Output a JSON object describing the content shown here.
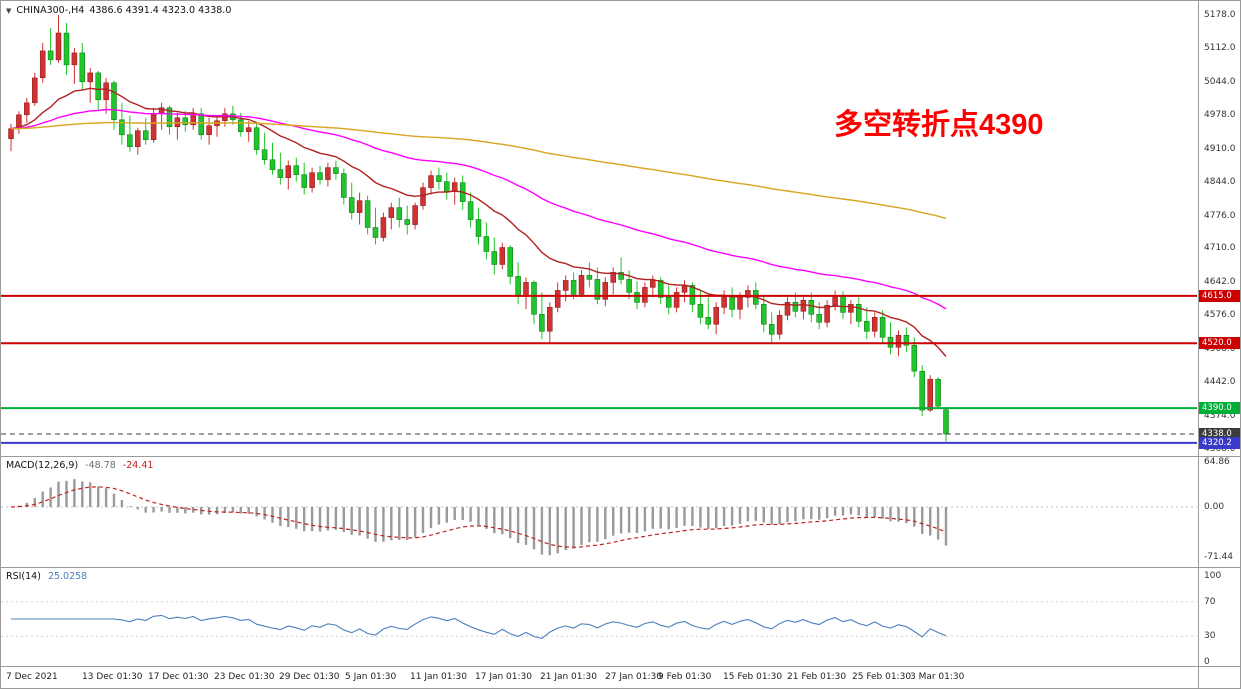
{
  "header": {
    "marker": "▼",
    "symbol": "CHINA300-,H4",
    "ohlc": "4386.6 4391.4 4323.0 4338.0"
  },
  "annotation": {
    "text": "多空转折点4390",
    "color": "#FF0000"
  },
  "price_axis": {
    "ticks": [
      "5178.0",
      "5112.0",
      "5044.0",
      "4978.0",
      "4910.0",
      "4844.0",
      "4776.0",
      "4710.0",
      "4642.0",
      "4576.0",
      "4508.0",
      "4442.0",
      "4374.0",
      "4308.0"
    ]
  },
  "levels": [
    {
      "price": 4615.0,
      "label": "4615.0",
      "color": "#CC0000",
      "width": 2
    },
    {
      "price": 4520.0,
      "label": "4520.0",
      "color": "#CC0000",
      "width": 2
    },
    {
      "price": 4390.0,
      "label": "4390.0",
      "color": "#00AE3A",
      "width": 2
    },
    {
      "price": 4338.0,
      "label": "4338.0",
      "color": "#3C3C3C",
      "width": 1,
      "dash": true
    },
    {
      "price": 4320.2,
      "label": "4320.2",
      "color": "#3A3AC8",
      "width": 2
    }
  ],
  "macd_panel": {
    "label": "MACD(12,26,9)",
    "value1": "-48.78",
    "value2": "-24.41",
    "axis_ticks": [
      "64.86",
      "0.00",
      "-71.44"
    ]
  },
  "rsi_panel": {
    "label": "RSI(14)",
    "value": "25.0258",
    "axis_ticks": [
      "100",
      "70",
      "30",
      "0"
    ]
  },
  "time_axis": {
    "labels": [
      "7 Dec 2021",
      "13 Dec 01:30",
      "17 Dec 01:30",
      "23 Dec 01:30",
      "29 Dec 01:30",
      "5 Jan 01:30",
      "11 Jan 01:30",
      "17 Jan 01:30",
      "21 Jan 01:30",
      "27 Jan 01:30",
      "9 Feb 01:30",
      "15 Feb 01:30",
      "21 Feb 01:30",
      "25 Feb 01:30",
      "3 Mar 01:30"
    ],
    "positions": [
      0.004,
      0.068,
      0.123,
      0.178,
      0.232,
      0.287,
      0.342,
      0.396,
      0.45,
      0.505,
      0.549,
      0.603,
      0.657,
      0.711,
      0.759
    ]
  },
  "chart_data": [
    {
      "type": "candlestick",
      "title": "CHINA300-,H4",
      "ylim": [
        4308,
        5178
      ],
      "y_ticks": [
        5178,
        5112,
        5044,
        4978,
        4910,
        4844,
        4776,
        4710,
        4642,
        4576,
        4508,
        4442,
        4374,
        4308
      ],
      "colors": {
        "bull": "#D03232",
        "bear": "#1FC52B"
      },
      "moving_averages": [
        {
          "period": 18,
          "color": "#B22222"
        },
        {
          "period": 55,
          "color": "#FF00FF"
        },
        {
          "period": 200,
          "color": "#DAA520"
        }
      ],
      "hlines": [
        4615.0,
        4520.0,
        4390.0,
        4338.0,
        4320.2
      ],
      "last_candle_ohlc": [
        4386.6,
        4391.4,
        4323.0,
        4338.0
      ],
      "candles": [
        [
          4930,
          4960,
          4905,
          4950
        ],
        [
          4950,
          4985,
          4940,
          4978
        ],
        [
          4978,
          5012,
          4962,
          5002
        ],
        [
          5002,
          5062,
          4996,
          5052
        ],
        [
          5052,
          5122,
          5042,
          5106
        ],
        [
          5106,
          5152,
          5078,
          5088
        ],
        [
          5088,
          5178,
          5082,
          5142
        ],
        [
          5142,
          5162,
          5058,
          5078
        ],
        [
          5078,
          5112,
          5040,
          5102
        ],
        [
          5102,
          5122,
          5028,
          5044
        ],
        [
          5044,
          5072,
          5002,
          5062
        ],
        [
          5062,
          5066,
          4988,
          5008
        ],
        [
          5008,
          5052,
          4980,
          5042
        ],
        [
          5042,
          5046,
          4948,
          4968
        ],
        [
          4968,
          5002,
          4918,
          4938
        ],
        [
          4938,
          4976,
          4904,
          4914
        ],
        [
          4914,
          4952,
          4898,
          4946
        ],
        [
          4946,
          4972,
          4918,
          4928
        ],
        [
          4928,
          4992,
          4922,
          4980
        ],
        [
          4980,
          5002,
          4948,
          4992
        ],
        [
          4992,
          4996,
          4938,
          4954
        ],
        [
          4954,
          4982,
          4928,
          4972
        ],
        [
          4972,
          4986,
          4944,
          4958
        ],
        [
          4958,
          4992,
          4948,
          4980
        ],
        [
          4980,
          4992,
          4928,
          4938
        ],
        [
          4938,
          4972,
          4918,
          4956
        ],
        [
          4956,
          4976,
          4934,
          4966
        ],
        [
          4966,
          4992,
          4954,
          4980
        ],
        [
          4980,
          4996,
          4958,
          4968
        ],
        [
          4968,
          4982,
          4934,
          4944
        ],
        [
          4944,
          4966,
          4924,
          4952
        ],
        [
          4952,
          4962,
          4898,
          4908
        ],
        [
          4908,
          4942,
          4878,
          4888
        ],
        [
          4888,
          4922,
          4858,
          4868
        ],
        [
          4868,
          4902,
          4838,
          4852
        ],
        [
          4852,
          4886,
          4828,
          4876
        ],
        [
          4876,
          4892,
          4844,
          4858
        ],
        [
          4858,
          4882,
          4818,
          4832
        ],
        [
          4832,
          4872,
          4822,
          4862
        ],
        [
          4862,
          4876,
          4838,
          4848
        ],
        [
          4848,
          4882,
          4834,
          4872
        ],
        [
          4872,
          4886,
          4848,
          4860
        ],
        [
          4860,
          4870,
          4798,
          4812
        ],
        [
          4812,
          4842,
          4768,
          4782
        ],
        [
          4782,
          4822,
          4758,
          4806
        ],
        [
          4806,
          4816,
          4738,
          4752
        ],
        [
          4752,
          4792,
          4718,
          4732
        ],
        [
          4732,
          4782,
          4724,
          4772
        ],
        [
          4772,
          4802,
          4748,
          4792
        ],
        [
          4792,
          4812,
          4752,
          4768
        ],
        [
          4768,
          4796,
          4738,
          4758
        ],
        [
          4758,
          4802,
          4748,
          4796
        ],
        [
          4796,
          4842,
          4788,
          4832
        ],
        [
          4832,
          4866,
          4818,
          4856
        ],
        [
          4856,
          4872,
          4828,
          4844
        ],
        [
          4844,
          4862,
          4808,
          4824
        ],
        [
          4824,
          4852,
          4798,
          4842
        ],
        [
          4842,
          4856,
          4788,
          4804
        ],
        [
          4804,
          4822,
          4752,
          4768
        ],
        [
          4768,
          4792,
          4718,
          4734
        ],
        [
          4734,
          4762,
          4688,
          4704
        ],
        [
          4704,
          4732,
          4658,
          4678
        ],
        [
          4678,
          4722,
          4668,
          4712
        ],
        [
          4712,
          4716,
          4638,
          4654
        ],
        [
          4654,
          4682,
          4598,
          4614
        ],
        [
          4614,
          4652,
          4588,
          4642
        ],
        [
          4642,
          4646,
          4558,
          4578
        ],
        [
          4578,
          4622,
          4528,
          4544
        ],
        [
          4544,
          4602,
          4518,
          4592
        ],
        [
          4592,
          4642,
          4582,
          4626
        ],
        [
          4626,
          4656,
          4604,
          4646
        ],
        [
          4646,
          4662,
          4608,
          4618
        ],
        [
          4618,
          4666,
          4612,
          4656
        ],
        [
          4656,
          4682,
          4632,
          4648
        ],
        [
          4648,
          4672,
          4598,
          4608
        ],
        [
          4608,
          4652,
          4594,
          4642
        ],
        [
          4642,
          4672,
          4618,
          4662
        ],
        [
          4662,
          4692,
          4638,
          4648
        ],
        [
          4648,
          4666,
          4608,
          4622
        ],
        [
          4622,
          4644,
          4588,
          4602
        ],
        [
          4602,
          4642,
          4592,
          4632
        ],
        [
          4632,
          4656,
          4612,
          4646
        ],
        [
          4646,
          4652,
          4598,
          4612
        ],
        [
          4612,
          4636,
          4578,
          4592
        ],
        [
          4592,
          4632,
          4582,
          4622
        ],
        [
          4622,
          4646,
          4602,
          4636
        ],
        [
          4636,
          4642,
          4582,
          4598
        ],
        [
          4598,
          4626,
          4558,
          4572
        ],
        [
          4572,
          4612,
          4548,
          4558
        ],
        [
          4558,
          4602,
          4538,
          4592
        ],
        [
          4592,
          4626,
          4578,
          4616
        ],
        [
          4616,
          4632,
          4572,
          4588
        ],
        [
          4588,
          4622,
          4568,
          4612
        ],
        [
          4612,
          4636,
          4592,
          4626
        ],
        [
          4626,
          4642,
          4588,
          4598
        ],
        [
          4598,
          4616,
          4542,
          4558
        ],
        [
          4558,
          4582,
          4522,
          4538
        ],
        [
          4538,
          4586,
          4528,
          4576
        ],
        [
          4576,
          4612,
          4566,
          4602
        ],
        [
          4602,
          4622,
          4572,
          4584
        ],
        [
          4584,
          4616,
          4568,
          4606
        ],
        [
          4606,
          4622,
          4562,
          4578
        ],
        [
          4578,
          4602,
          4548,
          4562
        ],
        [
          4562,
          4606,
          4552,
          4596
        ],
        [
          4596,
          4626,
          4586,
          4616
        ],
        [
          4616,
          4624,
          4568,
          4582
        ],
        [
          4582,
          4606,
          4558,
          4598
        ],
        [
          4598,
          4612,
          4552,
          4564
        ],
        [
          4564,
          4592,
          4528,
          4544
        ],
        [
          4544,
          4582,
          4532,
          4572
        ],
        [
          4572,
          4586,
          4518,
          4532
        ],
        [
          4532,
          4562,
          4498,
          4512
        ],
        [
          4512,
          4546,
          4494,
          4536
        ],
        [
          4536,
          4552,
          4502,
          4516
        ],
        [
          4516,
          4532,
          4452,
          4464
        ],
        [
          4464,
          4476,
          4374,
          4386
        ],
        [
          4386,
          4456,
          4382,
          4448
        ],
        [
          4448,
          4452,
          4388,
          4394
        ],
        [
          4386.6,
          4391.4,
          4323.0,
          4338.0
        ]
      ]
    },
    {
      "type": "macd_histogram",
      "label": "MACD(12,26,9)",
      "current_values": [
        -48.78,
        -24.41
      ],
      "y_ticks": [
        64.86,
        0.0,
        -71.44
      ],
      "colors": {
        "histogram": "#9a9a9a",
        "signal": "#C22222"
      }
    },
    {
      "type": "rsi_line",
      "label": "RSI(14)",
      "period": 14,
      "current_value": 25.0258,
      "y_ticks": [
        100,
        70,
        30,
        0
      ],
      "color": "#4C7FBE"
    }
  ]
}
